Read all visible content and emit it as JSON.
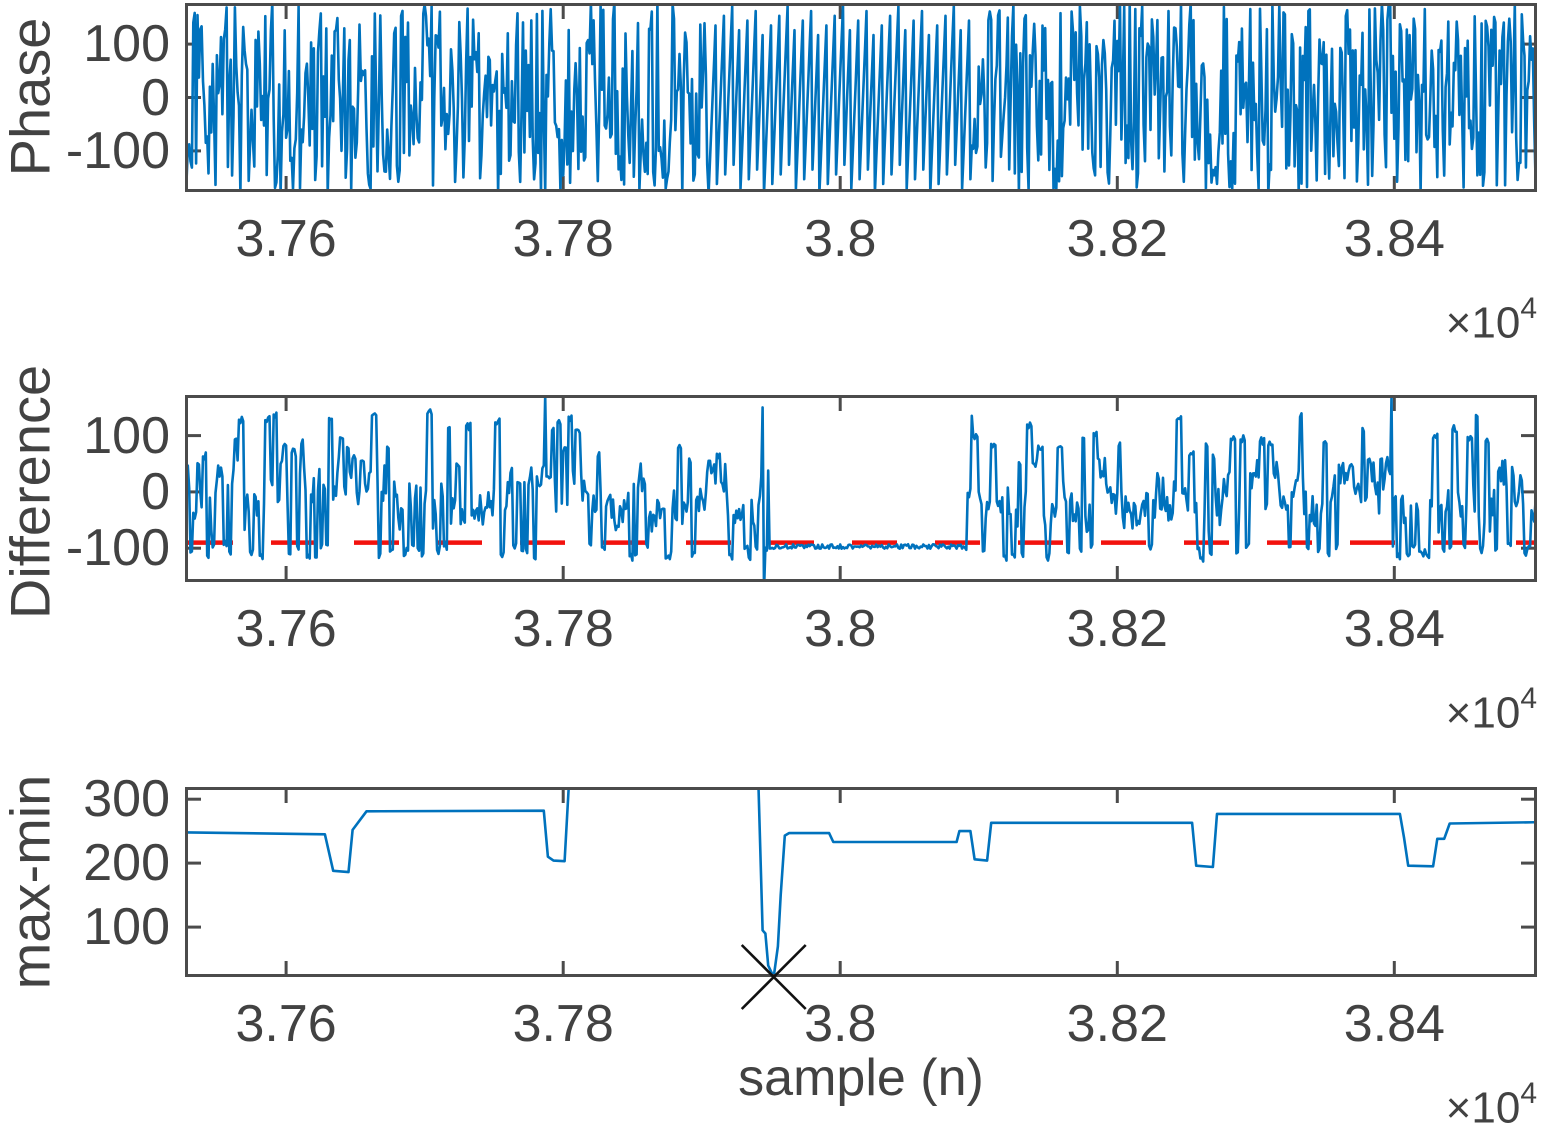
{
  "figure": {
    "background": "#ffffff",
    "axis_color": "#4b4b4b",
    "text_color": "#424242",
    "series_color": "#0072BD",
    "threshold_color": "#f2120e",
    "marker_color": "#111111"
  },
  "x_axis": {
    "xlabel": "sample (n)",
    "lim": [
      37527,
      38503
    ],
    "ticks": [
      37600,
      37800,
      38000,
      38200,
      38400
    ],
    "tick_labels": [
      "3.76",
      "3.78",
      "3.8",
      "3.82",
      "3.84"
    ],
    "exponent_base": "×10",
    "exponent_power": "4"
  },
  "chart_data": [
    {
      "type": "line",
      "name": "phase",
      "ylabel": "Phase",
      "ylim": [
        -177,
        177
      ],
      "yticks": [
        -100,
        0,
        100
      ],
      "ytick_labels": [
        "-100",
        "0",
        "100"
      ],
      "line_color": "#0072BD",
      "signal": {
        "kind": "wrapped-phase-random-walk",
        "seed": 7,
        "step_scale": 170,
        "wrap": [
          -180,
          180
        ],
        "quiet_region": {
          "start": 37905,
          "end": 38095,
          "start_value": -180,
          "ramp_per_sample": 63
        }
      }
    },
    {
      "type": "line",
      "name": "difference",
      "ylabel": "Difference",
      "ylim": [
        -160,
        172
      ],
      "yticks": [
        -100,
        0,
        100
      ],
      "ytick_labels": [
        "-100",
        "0",
        "100"
      ],
      "line_color": "#0072BD",
      "threshold": {
        "value": -90,
        "style": "dashed",
        "color": "#f2120e",
        "dash": [
          45,
          38
        ]
      },
      "signal": {
        "kind": "spiky-noise-with-quiet-segment",
        "seed": 13,
        "base_clamp": [
          -45,
          35
        ],
        "peak_prob": 0.1,
        "peak_range": [
          45,
          140
        ],
        "dip_prob": 0.12,
        "dip_range": [
          -120,
          -92
        ],
        "quiet_region": {
          "start": 37950,
          "end": 38090,
          "level": -97,
          "noise": 4
        },
        "spikes": [
          {
            "x": 37787,
            "y": 170
          },
          {
            "x": 37944,
            "y": 150
          },
          {
            "x": 37945,
            "y": -176
          },
          {
            "x": 38095,
            "y": 135
          },
          {
            "x": 38398,
            "y": 168
          }
        ]
      }
    },
    {
      "type": "line",
      "name": "max-min",
      "ylabel": "max-min",
      "ylim": [
        22,
        319
      ],
      "yticks": [
        100,
        200,
        300
      ],
      "ytick_labels": [
        "100",
        "200",
        "300"
      ],
      "line_color": "#0072BD",
      "breakpoints": [
        [
          37527,
          248
        ],
        [
          37628,
          245
        ],
        [
          37634,
          188
        ],
        [
          37645,
          186
        ],
        [
          37648,
          252
        ],
        [
          37658,
          281
        ],
        [
          37786,
          282
        ],
        [
          37789,
          210
        ],
        [
          37793,
          204
        ],
        [
          37801,
          203
        ],
        [
          37804,
          318
        ],
        [
          37941,
          319
        ],
        [
          37944,
          95
        ],
        [
          37946,
          90
        ],
        [
          37948,
          40
        ],
        [
          37952,
          22
        ],
        [
          37955,
          70
        ],
        [
          37957,
          150
        ],
        [
          37960,
          243
        ],
        [
          37963,
          247
        ],
        [
          37992,
          247
        ],
        [
          37995,
          233
        ],
        [
          38084,
          233
        ],
        [
          38086,
          250
        ],
        [
          38094,
          250
        ],
        [
          38097,
          206
        ],
        [
          38106,
          204
        ],
        [
          38109,
          263
        ],
        [
          38254,
          263
        ],
        [
          38257,
          196
        ],
        [
          38269,
          194
        ],
        [
          38272,
          277
        ],
        [
          38404,
          277
        ],
        [
          38407,
          240
        ],
        [
          38410,
          196
        ],
        [
          38428,
          195
        ],
        [
          38431,
          238
        ],
        [
          38436,
          238
        ],
        [
          38440,
          262
        ],
        [
          38503,
          264
        ]
      ],
      "marker": {
        "x": 37952,
        "y": 22,
        "symbol": "x",
        "size": 64,
        "color": "#111111"
      }
    }
  ]
}
